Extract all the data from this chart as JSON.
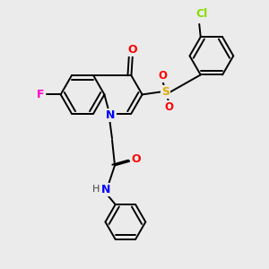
{
  "background_color": "#ebebeb",
  "bond_color": "#000000",
  "atom_colors": {
    "F": "#ff00cc",
    "Cl": "#88dd00",
    "N": "#0000ff",
    "O": "#ff0000",
    "S": "#ddaa00",
    "H": "#404040"
  },
  "figsize": [
    3.0,
    3.0
  ],
  "dpi": 100,
  "lw": 1.4,
  "sep": 0.09
}
